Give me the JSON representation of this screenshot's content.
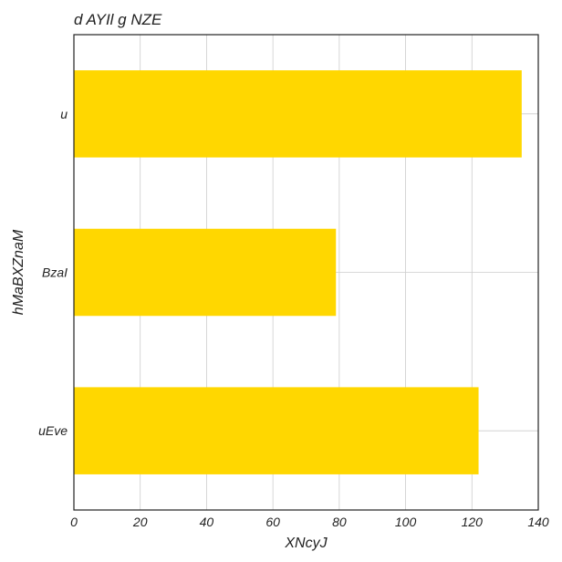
{
  "chart_data": {
    "type": "bar",
    "orientation": "horizontal",
    "title": "d AYIl g NZE",
    "xlabel": "XNcyJ",
    "ylabel": "hMaBXZnaM",
    "categories": [
      "u",
      "BzaI",
      "uEve"
    ],
    "values": [
      135,
      79,
      122
    ],
    "xlim": [
      0,
      140
    ],
    "xticks": [
      0,
      20,
      40,
      60,
      80,
      100,
      120,
      140
    ],
    "grid": true,
    "bar_color": "#FFD700"
  }
}
